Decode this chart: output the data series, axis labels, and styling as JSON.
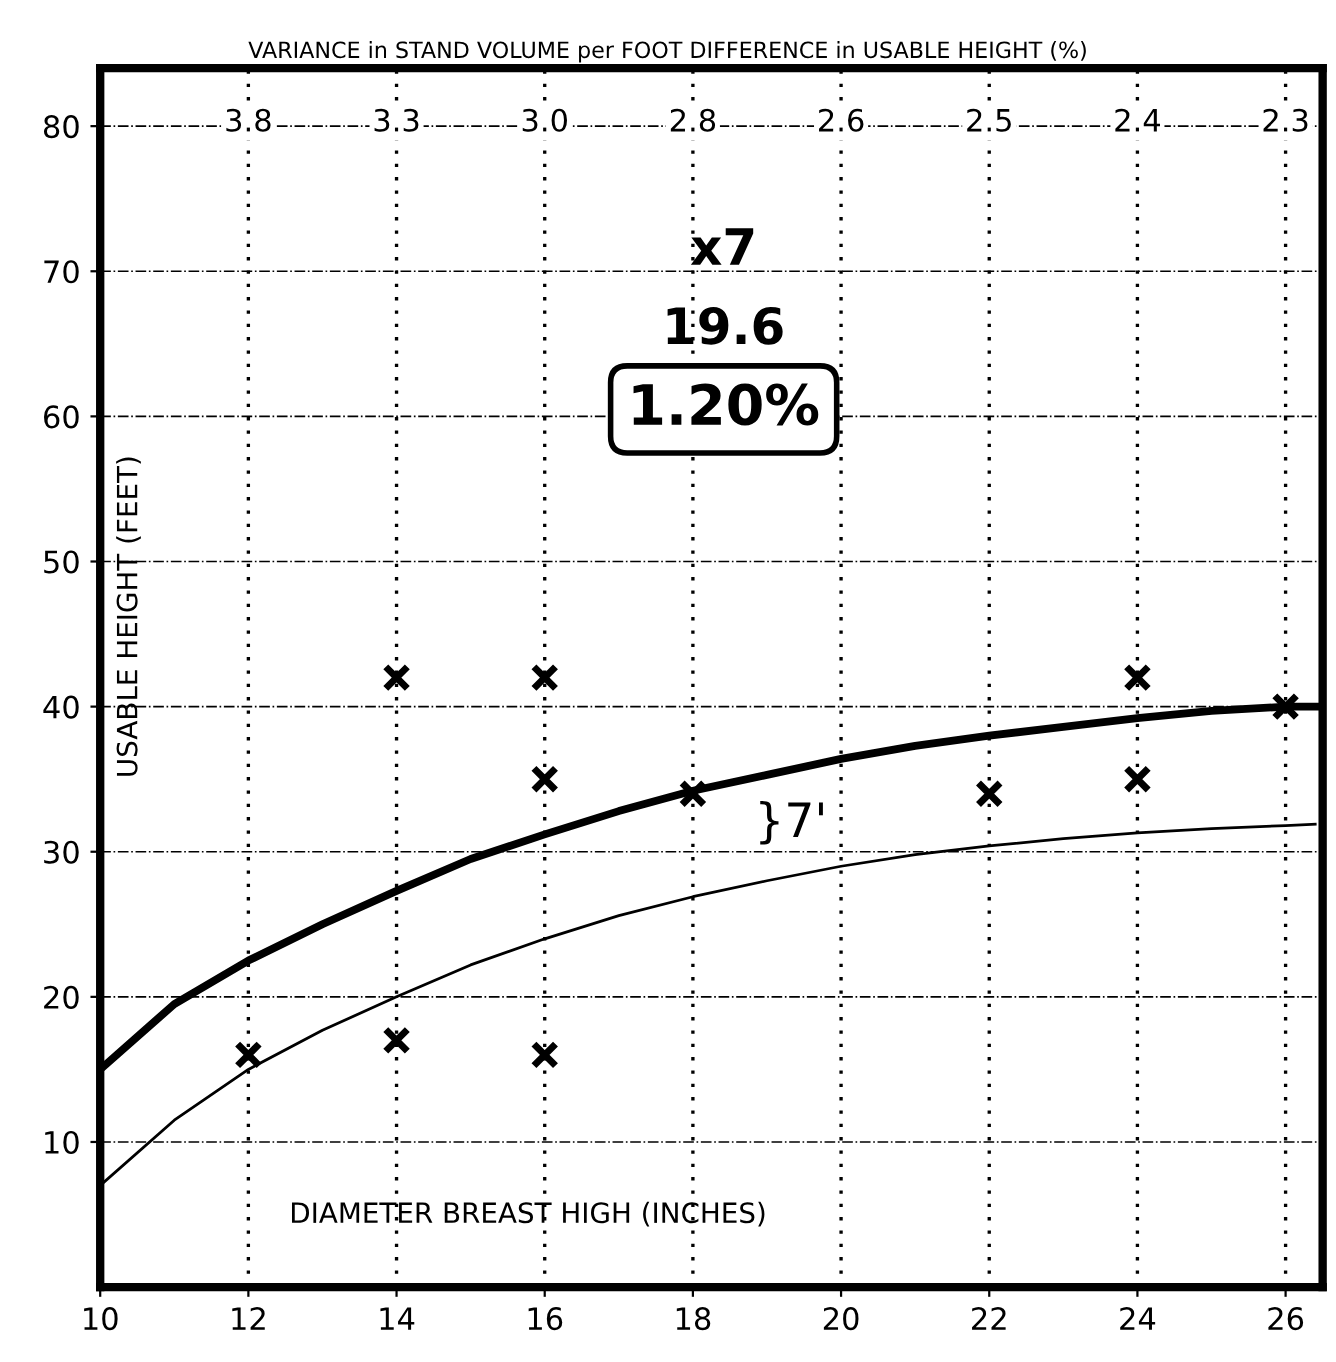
{
  "chart_data": {
    "type": "line",
    "xlabel": "DIAMETER BREAST HIGH (INCHES)",
    "ylabel": "USABLE HEIGHT (FEET)",
    "xlim": [
      10,
      26.5
    ],
    "ylim": [
      0,
      84
    ],
    "xticks": [
      10,
      12,
      14,
      16,
      18,
      20,
      22,
      24,
      26
    ],
    "yticks": [
      10,
      20,
      30,
      40,
      50,
      60,
      70,
      80
    ],
    "grid": true,
    "legend": false,
    "series": [
      {
        "color": "#000000",
        "marker": "none",
        "x": [
          10,
          11,
          12,
          13,
          14,
          15,
          16,
          17,
          18,
          19,
          20,
          21,
          22,
          23,
          24,
          25,
          26,
          26.4
        ],
        "values": [
          15,
          19.5,
          22.5,
          25,
          27.3,
          29.5,
          31.2,
          32.8,
          34.2,
          35.3,
          36.4,
          37.3,
          38,
          38.6,
          39.2,
          39.7,
          40,
          40
        ]
      },
      {
        "color": "#000000",
        "marker": "none",
        "x": [
          10,
          11,
          12,
          13,
          14,
          15,
          16,
          17,
          18,
          19,
          20,
          21,
          22,
          23,
          24,
          25,
          26,
          26.4
        ],
        "values": [
          7,
          11.5,
          15,
          17.7,
          20,
          22.2,
          24,
          25.6,
          26.9,
          28,
          29,
          29.8,
          30.4,
          30.9,
          31.3,
          31.6,
          31.8,
          31.9
        ]
      },
      {
        "color": "#000000",
        "type": "scatter",
        "marker": "cross",
        "x": [
          12,
          14,
          14,
          16,
          16,
          16,
          18,
          22,
          24,
          24,
          26
        ],
        "values": [
          16,
          42,
          17,
          42,
          35,
          16,
          34,
          34,
          42,
          35,
          40
        ]
      }
    ],
    "annotations": [
      "VARIANCE in STAND VOLUME per FOOT DIFFERENCE in USABLE HEIGHT (%)",
      "3.8",
      "3.3",
      "3.0",
      "2.8",
      "2.6",
      "2.5",
      "2.4",
      "2.3",
      "x7",
      "19.6",
      "1.20%",
      "}7'"
    ]
  }
}
